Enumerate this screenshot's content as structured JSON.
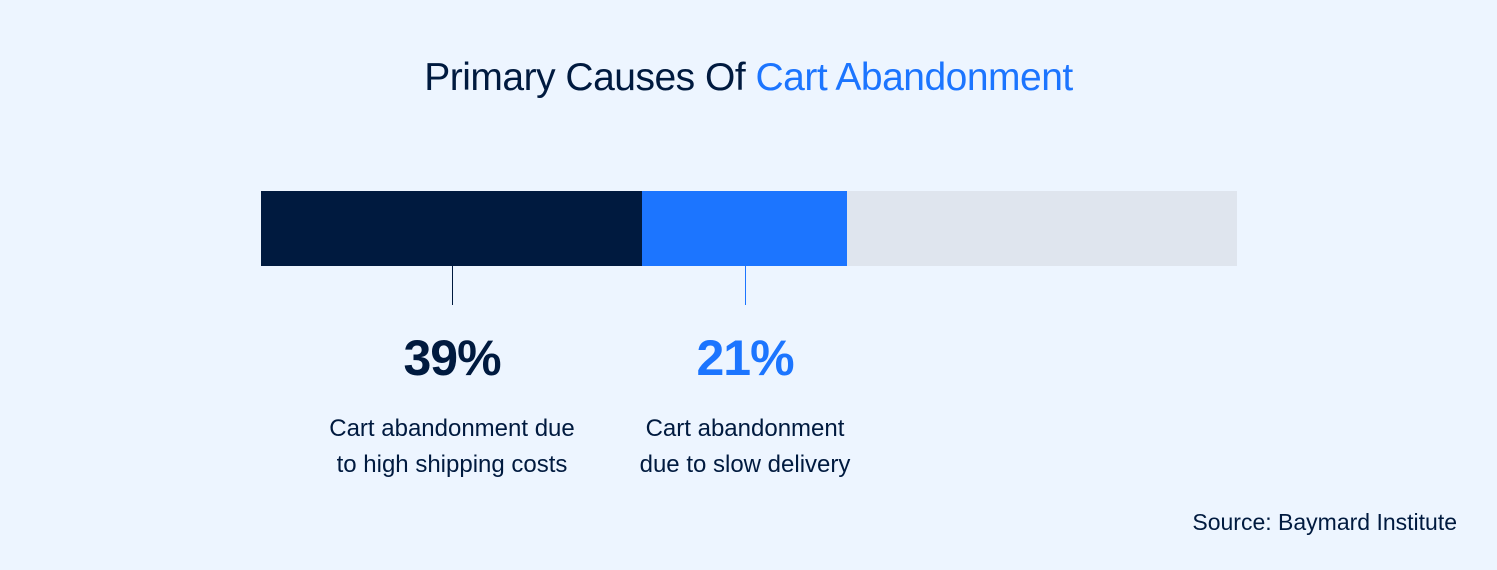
{
  "title": {
    "prefix": "Primary Causes Of",
    "highlight": "Cart Abandonment"
  },
  "chart_data": {
    "type": "bar",
    "orientation": "horizontal-stacked",
    "total": 100,
    "segments": [
      {
        "value": 39,
        "value_label": "39%",
        "label_line1": "Cart abandonment due",
        "label_line2": "to high shipping costs",
        "color": "#001A3F"
      },
      {
        "value": 21,
        "value_label": "21%",
        "label_line1": "Cart abandonment",
        "label_line2": "due to slow delivery",
        "color": "#1C75FF"
      }
    ],
    "remainder_color": "#DFE5EE"
  },
  "source": "Source: Baymard Institute"
}
